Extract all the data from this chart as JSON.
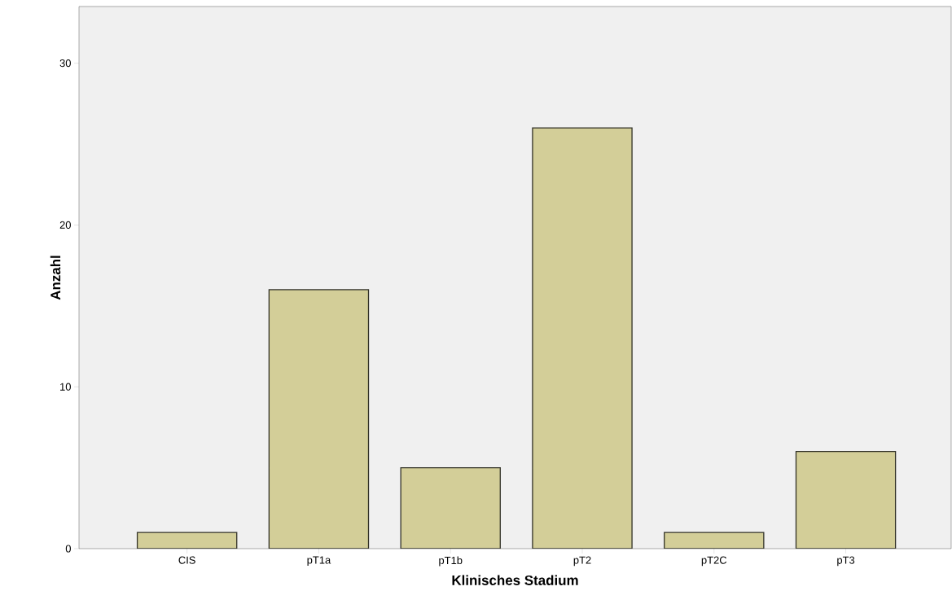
{
  "chart_data": {
    "type": "bar",
    "xlabel": "Klinisches Stadium",
    "ylabel": "Anzahl",
    "categories": [
      "CIS",
      "pT1a",
      "pT1b",
      "pT2",
      "pT2C",
      "pT3"
    ],
    "values": [
      1,
      16,
      5,
      26,
      1,
      6
    ],
    "color": "#d3ce98",
    "ylim": [
      0,
      33.5
    ],
    "yticks": [
      0,
      10,
      20,
      30
    ]
  }
}
